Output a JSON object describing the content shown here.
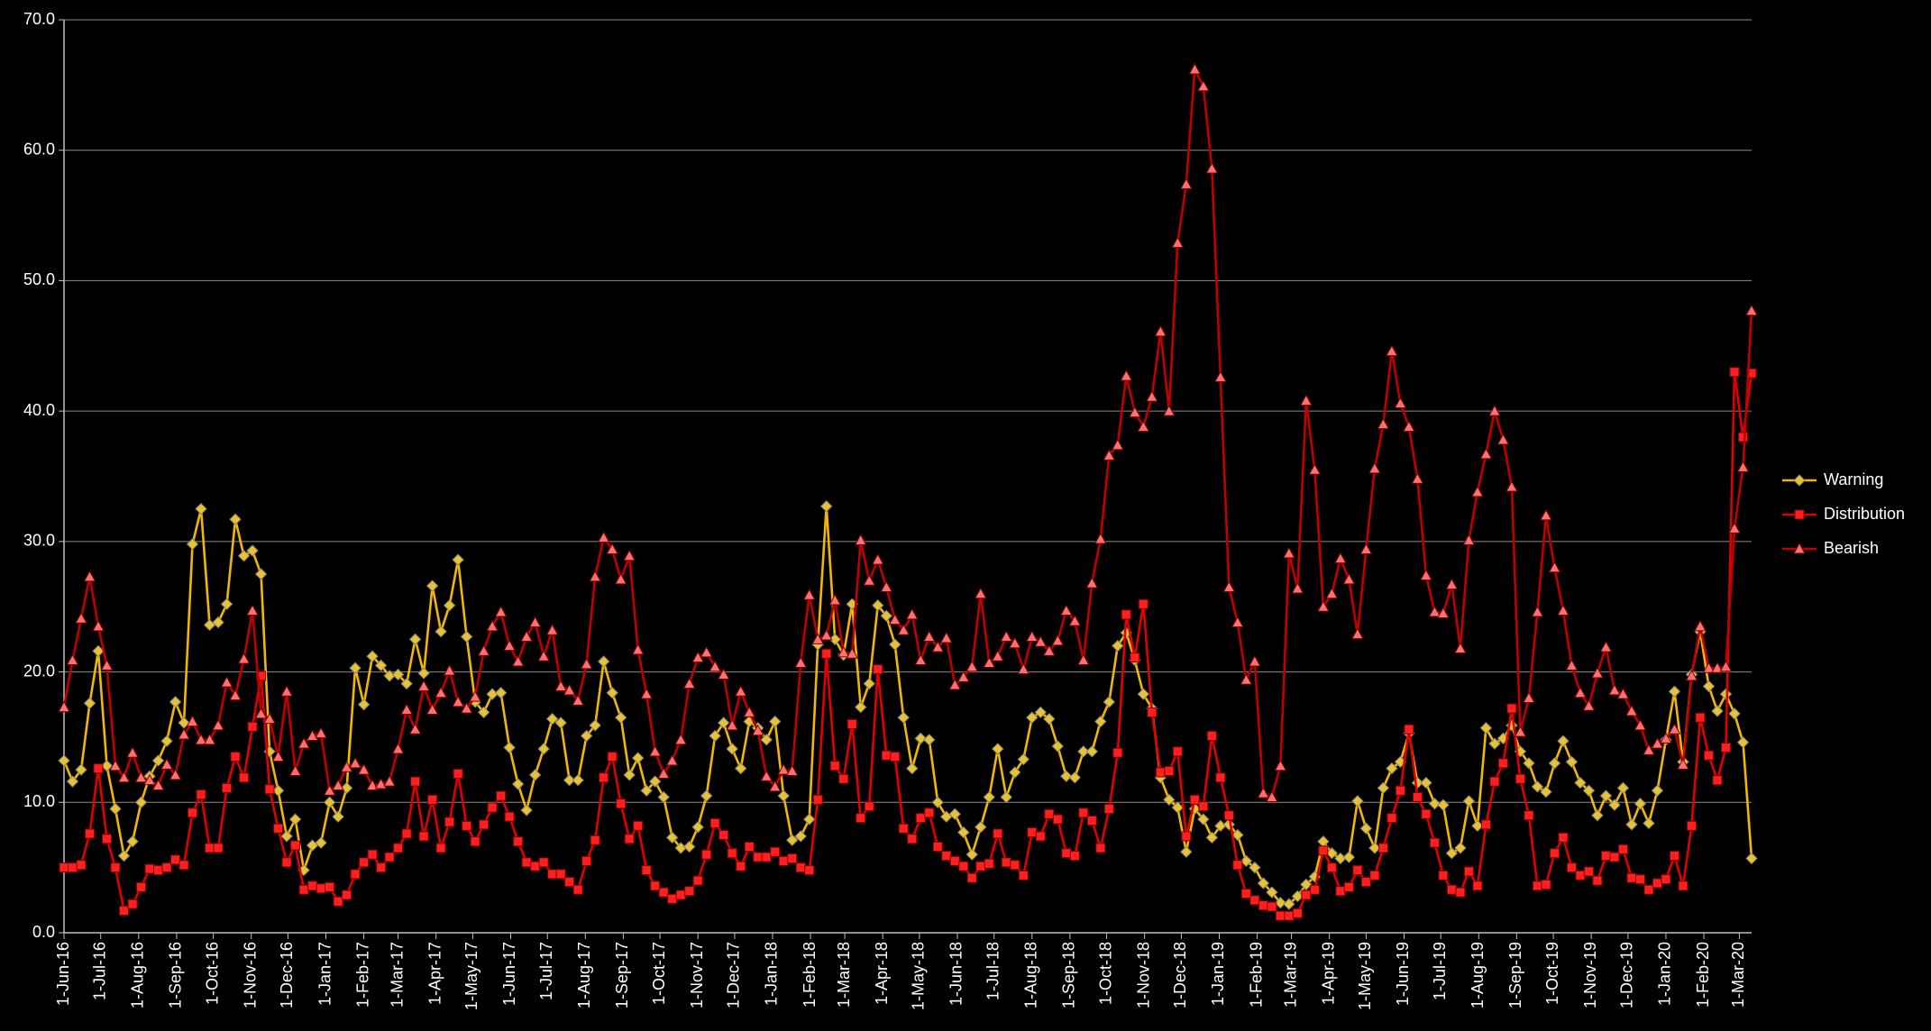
{
  "chart_data": {
    "type": "line",
    "x": [
      "2016-06-01",
      "2016-06-08",
      "2016-06-15",
      "2016-06-22",
      "2016-06-29",
      "2016-07-06",
      "2016-07-13",
      "2016-07-20",
      "2016-07-27",
      "2016-08-03",
      "2016-08-10",
      "2016-08-17",
      "2016-08-24",
      "2016-08-31",
      "2016-09-07",
      "2016-09-14",
      "2016-09-21",
      "2016-09-28",
      "2016-10-05",
      "2016-10-12",
      "2016-10-19",
      "2016-10-26",
      "2016-11-02",
      "2016-11-09",
      "2016-11-16",
      "2016-11-23",
      "2016-11-30",
      "2016-12-07",
      "2016-12-14",
      "2016-12-21",
      "2016-12-28",
      "2017-01-04",
      "2017-01-11",
      "2017-01-18",
      "2017-01-25",
      "2017-02-01",
      "2017-02-08",
      "2017-02-15",
      "2017-02-22",
      "2017-03-01",
      "2017-03-08",
      "2017-03-15",
      "2017-03-22",
      "2017-03-29",
      "2017-04-05",
      "2017-04-12",
      "2017-04-19",
      "2017-04-26",
      "2017-05-03",
      "2017-05-10",
      "2017-05-17",
      "2017-05-24",
      "2017-05-31",
      "2017-06-07",
      "2017-06-14",
      "2017-06-21",
      "2017-06-28",
      "2017-07-05",
      "2017-07-12",
      "2017-07-19",
      "2017-07-26",
      "2017-08-02",
      "2017-08-09",
      "2017-08-16",
      "2017-08-23",
      "2017-08-30",
      "2017-09-06",
      "2017-09-13",
      "2017-09-20",
      "2017-09-27",
      "2017-10-04",
      "2017-10-11",
      "2017-10-18",
      "2017-10-25",
      "2017-11-01",
      "2017-11-08",
      "2017-11-15",
      "2017-11-22",
      "2017-11-29",
      "2017-12-06",
      "2017-12-13",
      "2017-12-20",
      "2017-12-27",
      "2018-01-03",
      "2018-01-10",
      "2018-01-17",
      "2018-01-24",
      "2018-01-31",
      "2018-02-07",
      "2018-02-14",
      "2018-02-21",
      "2018-02-28",
      "2018-03-07",
      "2018-03-14",
      "2018-03-21",
      "2018-03-28",
      "2018-04-04",
      "2018-04-11",
      "2018-04-18",
      "2018-04-25",
      "2018-05-02",
      "2018-05-09",
      "2018-05-16",
      "2018-05-23",
      "2018-05-30",
      "2018-06-06",
      "2018-06-13",
      "2018-06-20",
      "2018-06-27",
      "2018-07-04",
      "2018-07-11",
      "2018-07-18",
      "2018-07-25",
      "2018-08-01",
      "2018-08-08",
      "2018-08-15",
      "2018-08-22",
      "2018-08-29",
      "2018-09-05",
      "2018-09-12",
      "2018-09-19",
      "2018-09-26",
      "2018-10-03",
      "2018-10-10",
      "2018-10-17",
      "2018-10-24",
      "2018-10-31",
      "2018-11-07",
      "2018-11-14",
      "2018-11-21",
      "2018-11-28",
      "2018-12-05",
      "2018-12-12",
      "2018-12-19",
      "2018-12-26",
      "2019-01-02",
      "2019-01-09",
      "2019-01-16",
      "2019-01-23",
      "2019-01-30",
      "2019-02-06",
      "2019-02-13",
      "2019-02-20",
      "2019-02-27",
      "2019-03-06",
      "2019-03-13",
      "2019-03-20",
      "2019-03-27",
      "2019-04-03",
      "2019-04-10",
      "2019-04-17",
      "2019-04-24",
      "2019-05-01",
      "2019-05-08",
      "2019-05-15",
      "2019-05-22",
      "2019-05-29",
      "2019-06-05",
      "2019-06-12",
      "2019-06-19",
      "2019-06-26",
      "2019-07-03",
      "2019-07-10",
      "2019-07-17",
      "2019-07-24",
      "2019-07-31",
      "2019-08-07",
      "2019-08-14",
      "2019-08-21",
      "2019-08-28",
      "2019-09-04",
      "2019-09-11",
      "2019-09-18",
      "2019-09-25",
      "2019-10-02",
      "2019-10-09",
      "2019-10-16",
      "2019-10-23",
      "2019-10-30",
      "2019-11-06",
      "2019-11-13",
      "2019-11-20",
      "2019-11-27",
      "2019-12-04",
      "2019-12-11",
      "2019-12-18",
      "2019-12-25",
      "2020-01-01",
      "2020-01-08",
      "2020-01-15",
      "2020-01-22",
      "2020-01-29",
      "2020-02-05",
      "2020-02-12",
      "2020-02-19",
      "2020-02-26",
      "2020-03-04",
      "2020-03-11"
    ],
    "xlim": [
      "2016-06-01",
      "2020-03-11"
    ],
    "xticks": [
      {
        "value": "2016-06-01",
        "label": "1-Jun-16"
      },
      {
        "value": "2016-07-01",
        "label": "1-Jul-16"
      },
      {
        "value": "2016-08-01",
        "label": "1-Aug-16"
      },
      {
        "value": "2016-09-01",
        "label": "1-Sep-16"
      },
      {
        "value": "2016-10-01",
        "label": "1-Oct-16"
      },
      {
        "value": "2016-11-01",
        "label": "1-Nov-16"
      },
      {
        "value": "2016-12-01",
        "label": "1-Dec-16"
      },
      {
        "value": "2017-01-01",
        "label": "1-Jan-17"
      },
      {
        "value": "2017-02-01",
        "label": "1-Feb-17"
      },
      {
        "value": "2017-03-01",
        "label": "1-Mar-17"
      },
      {
        "value": "2017-04-01",
        "label": "1-Apr-17"
      },
      {
        "value": "2017-05-01",
        "label": "1-May-17"
      },
      {
        "value": "2017-06-01",
        "label": "1-Jun-17"
      },
      {
        "value": "2017-07-01",
        "label": "1-Jul-17"
      },
      {
        "value": "2017-08-01",
        "label": "1-Aug-17"
      },
      {
        "value": "2017-09-01",
        "label": "1-Sep-17"
      },
      {
        "value": "2017-10-01",
        "label": "1-Oct-17"
      },
      {
        "value": "2017-11-01",
        "label": "1-Nov-17"
      },
      {
        "value": "2017-12-01",
        "label": "1-Dec-17"
      },
      {
        "value": "2018-01-01",
        "label": "1-Jan-18"
      },
      {
        "value": "2018-02-01",
        "label": "1-Feb-18"
      },
      {
        "value": "2018-03-01",
        "label": "1-Mar-18"
      },
      {
        "value": "2018-04-01",
        "label": "1-Apr-18"
      },
      {
        "value": "2018-05-01",
        "label": "1-May-18"
      },
      {
        "value": "2018-06-01",
        "label": "1-Jun-18"
      },
      {
        "value": "2018-07-01",
        "label": "1-Jul-18"
      },
      {
        "value": "2018-08-01",
        "label": "1-Aug-18"
      },
      {
        "value": "2018-09-01",
        "label": "1-Sep-18"
      },
      {
        "value": "2018-10-01",
        "label": "1-Oct-18"
      },
      {
        "value": "2018-11-01",
        "label": "1-Nov-18"
      },
      {
        "value": "2018-12-01",
        "label": "1-Dec-18"
      },
      {
        "value": "2019-01-01",
        "label": "1-Jan-19"
      },
      {
        "value": "2019-02-01",
        "label": "1-Feb-19"
      },
      {
        "value": "2019-03-01",
        "label": "1-Mar-19"
      },
      {
        "value": "2019-04-01",
        "label": "1-Apr-19"
      },
      {
        "value": "2019-05-01",
        "label": "1-May-19"
      },
      {
        "value": "2019-06-01",
        "label": "1-Jun-19"
      },
      {
        "value": "2019-07-01",
        "label": "1-Jul-19"
      },
      {
        "value": "2019-08-01",
        "label": "1-Aug-19"
      },
      {
        "value": "2019-09-01",
        "label": "1-Sep-19"
      },
      {
        "value": "2019-10-01",
        "label": "1-Oct-19"
      },
      {
        "value": "2019-11-01",
        "label": "1-Nov-19"
      },
      {
        "value": "2019-12-01",
        "label": "1-Dec-19"
      },
      {
        "value": "2020-01-01",
        "label": "1-Jan-20"
      },
      {
        "value": "2020-02-01",
        "label": "1-Feb-20"
      },
      {
        "value": "2020-03-01",
        "label": "1-Mar-20"
      }
    ],
    "ylim": [
      0,
      70
    ],
    "yticks": [
      {
        "value": 0,
        "label": "0.0"
      },
      {
        "value": 10,
        "label": "10.0"
      },
      {
        "value": 20,
        "label": "20.0"
      },
      {
        "value": 30,
        "label": "30.0"
      },
      {
        "value": 40,
        "label": "40.0"
      },
      {
        "value": 50,
        "label": "50.0"
      },
      {
        "value": 60,
        "label": "60.0"
      },
      {
        "value": 70,
        "label": "70.0"
      }
    ],
    "grid": true,
    "legend": "right",
    "series": [
      {
        "name": "Warning",
        "color": "#f2b800",
        "marker": "diamond",
        "values": [
          13.2,
          11.6,
          12.5,
          17.6,
          21.6,
          12.8,
          9.5,
          5.9,
          7.0,
          10.0,
          12.0,
          13.2,
          14.7,
          17.7,
          16.1,
          29.8,
          32.5,
          23.6,
          23.8,
          25.2,
          31.7,
          28.9,
          29.3,
          27.5,
          13.9,
          10.9,
          7.4,
          8.7,
          4.8,
          6.7,
          6.9,
          10.0,
          8.9,
          11.1,
          20.3,
          17.5,
          21.2,
          20.5,
          19.7,
          19.8,
          19.1,
          22.5,
          19.9,
          26.6,
          23.1,
          25.1,
          28.6,
          22.7,
          17.7,
          16.9,
          18.3,
          18.4,
          14.2,
          11.4,
          9.4,
          12.1,
          14.1,
          16.4,
          16.1,
          11.7,
          11.7,
          15.1,
          15.9,
          20.8,
          18.4,
          16.5,
          12.1,
          13.4,
          10.9,
          11.6,
          10.4,
          7.3,
          6.5,
          6.6,
          8.1,
          10.5,
          15.1,
          16.1,
          14.1,
          12.6,
          16.2,
          15.7,
          14.8,
          16.2,
          10.5,
          7.1,
          7.4,
          8.7,
          22.1,
          32.7,
          22.5,
          21.3,
          25.2,
          17.3,
          19.1,
          25.1,
          24.3,
          22.1,
          16.5,
          12.6,
          14.9,
          14.8,
          10.0,
          8.9,
          9.1,
          7.7,
          6.0,
          8.1,
          10.4,
          14.1,
          10.4,
          12.3,
          13.3,
          16.5,
          16.9,
          16.4,
          14.3,
          12.0,
          11.9,
          13.9,
          13.9,
          16.2,
          17.7,
          22.0,
          23.0,
          20.9,
          18.3,
          17.2,
          11.9,
          10.2,
          9.6,
          6.2,
          9.5,
          8.7,
          7.3,
          8.2,
          8.3,
          7.5,
          5.5,
          5.0,
          3.8,
          3.1,
          2.3,
          2.2,
          2.8,
          3.7,
          4.3,
          7.0,
          6.1,
          5.7,
          5.8,
          10.1,
          8.0,
          6.5,
          11.1,
          12.6,
          13.1,
          15.3,
          11.5,
          11.5,
          9.9,
          9.8,
          6.1,
          6.5,
          10.1,
          8.2,
          15.7,
          14.5,
          14.9,
          15.9,
          13.9,
          13.0,
          11.2,
          10.8,
          13.0,
          14.7,
          13.1,
          11.5,
          10.9,
          9.0,
          10.5,
          9.8,
          11.1,
          8.3,
          9.9,
          8.4,
          10.9,
          14.8,
          18.5,
          13.1,
          19.8,
          23.1,
          18.9,
          17.0,
          18.3,
          16.8,
          14.6,
          5.7
        ]
      },
      {
        "name": "Distribution",
        "color": "#e00000",
        "marker": "square",
        "values": [
          5.0,
          5.0,
          5.2,
          7.6,
          12.6,
          7.2,
          5.0,
          1.7,
          2.2,
          3.5,
          4.9,
          4.8,
          5.0,
          5.6,
          5.2,
          9.2,
          10.6,
          6.5,
          6.5,
          11.1,
          13.5,
          11.9,
          15.8,
          19.7,
          11.0,
          8.0,
          5.4,
          6.7,
          3.3,
          3.6,
          3.4,
          3.5,
          2.4,
          2.9,
          4.5,
          5.4,
          6.0,
          5.0,
          5.8,
          6.5,
          7.6,
          11.6,
          7.4,
          10.2,
          6.5,
          8.5,
          12.2,
          8.2,
          7.0,
          8.3,
          9.6,
          10.5,
          8.9,
          7.0,
          5.4,
          5.1,
          5.4,
          4.5,
          4.5,
          3.9,
          3.3,
          5.5,
          7.1,
          11.9,
          13.5,
          9.9,
          7.2,
          8.2,
          4.8,
          3.6,
          3.1,
          2.6,
          2.9,
          3.2,
          4.0,
          6.0,
          8.4,
          7.5,
          6.1,
          5.1,
          6.6,
          5.8,
          5.8,
          6.2,
          5.5,
          5.7,
          5.0,
          4.8,
          10.2,
          21.4,
          12.8,
          11.8,
          16.0,
          8.8,
          9.7,
          20.2,
          13.6,
          13.5,
          8.0,
          7.2,
          8.8,
          9.2,
          6.6,
          5.9,
          5.5,
          5.1,
          4.2,
          5.1,
          5.3,
          7.6,
          5.4,
          5.2,
          4.4,
          7.7,
          7.4,
          9.1,
          8.7,
          6.1,
          5.9,
          9.2,
          8.6,
          6.5,
          9.5,
          13.8,
          24.4,
          21.1,
          25.2,
          16.9,
          12.3,
          12.4,
          13.9,
          7.4,
          10.2,
          9.7,
          15.1,
          11.9,
          9.0,
          5.2,
          3.0,
          2.5,
          2.1,
          2.0,
          1.3,
          1.3,
          1.5,
          2.9,
          3.3,
          6.3,
          5.0,
          3.2,
          3.5,
          4.8,
          3.9,
          4.4,
          6.5,
          8.8,
          10.9,
          15.6,
          10.4,
          9.1,
          6.9,
          4.4,
          3.3,
          3.1,
          4.7,
          3.6,
          8.3,
          11.6,
          13.0,
          17.2,
          11.8,
          9.0,
          3.6,
          3.7,
          6.1,
          7.3,
          5.0,
          4.4,
          4.7,
          4.0,
          5.9,
          5.8,
          6.4,
          4.2,
          4.1,
          3.3,
          3.8,
          4.1,
          5.9,
          3.6,
          8.2,
          16.5,
          13.6,
          11.7,
          14.2,
          43.0,
          38.0,
          42.9
        ]
      },
      {
        "name": "Bearish",
        "color": "#c00000",
        "marker": "triangle",
        "values": [
          17.3,
          20.9,
          24.1,
          27.3,
          23.5,
          20.5,
          12.8,
          11.9,
          13.8,
          11.9,
          11.7,
          11.3,
          12.9,
          12.1,
          15.2,
          16.2,
          14.8,
          14.8,
          15.9,
          19.2,
          18.2,
          21.0,
          24.7,
          16.8,
          16.4,
          13.5,
          18.5,
          12.4,
          14.5,
          15.1,
          15.3,
          10.9,
          11.3,
          12.7,
          13.0,
          12.5,
          11.3,
          11.4,
          11.6,
          14.1,
          17.1,
          15.6,
          18.9,
          17.1,
          18.4,
          20.1,
          17.7,
          17.2,
          18.1,
          21.6,
          23.5,
          24.6,
          22.0,
          20.8,
          22.7,
          23.8,
          21.2,
          23.2,
          18.9,
          18.6,
          17.8,
          20.6,
          27.3,
          30.3,
          29.4,
          27.1,
          28.9,
          21.7,
          18.3,
          13.9,
          12.2,
          13.2,
          14.8,
          19.1,
          21.1,
          21.5,
          20.4,
          19.8,
          15.9,
          18.5,
          16.9,
          15.5,
          12.0,
          11.2,
          12.5,
          12.4,
          20.7,
          25.9,
          22.5,
          22.8,
          25.5,
          21.5,
          21.4,
          30.1,
          27.0,
          28.6,
          26.5,
          24.0,
          23.2,
          24.4,
          20.9,
          22.7,
          21.9,
          22.6,
          19.0,
          19.6,
          20.4,
          26.0,
          20.7,
          21.2,
          22.7,
          22.2,
          20.2,
          22.7,
          22.3,
          21.6,
          22.4,
          24.7,
          23.9,
          20.9,
          26.8,
          30.2,
          36.6,
          37.4,
          42.7,
          39.9,
          38.8,
          41.1,
          46.1,
          40.0,
          52.9,
          57.4,
          66.2,
          64.9,
          58.6,
          42.6,
          26.5,
          23.8,
          19.4,
          20.8,
          10.7,
          10.4,
          12.8,
          29.1,
          26.4,
          40.8,
          35.5,
          25.0,
          26.0,
          28.7,
          27.1,
          22.9,
          29.4,
          35.6,
          39.0,
          44.6,
          40.6,
          38.8,
          34.8,
          27.4,
          24.6,
          24.5,
          26.7,
          21.8,
          30.1,
          33.8,
          36.7,
          40.0,
          37.8,
          34.2,
          15.4,
          18.0,
          24.6,
          32.0,
          28.0,
          24.7,
          20.5,
          18.4,
          17.4,
          19.9,
          21.9,
          18.6,
          18.3,
          17.0,
          15.9,
          14.0,
          14.5,
          14.9,
          15.6,
          12.9,
          19.7,
          23.5,
          20.3,
          20.3,
          20.4,
          31.0,
          35.7,
          47.7
        ]
      }
    ]
  }
}
